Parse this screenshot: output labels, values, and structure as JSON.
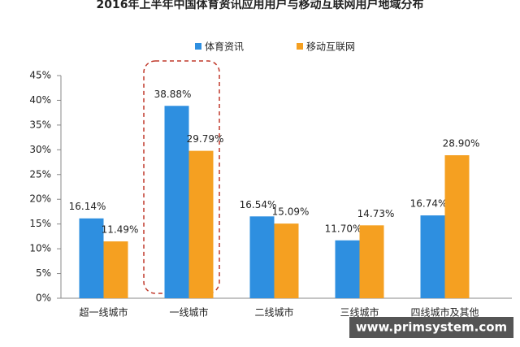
{
  "chart_data": {
    "type": "bar",
    "title": "2016年上半年中国体育资讯应用用户与移动互联网用户地域分布",
    "categories": [
      "超一线城市",
      "一线城市",
      "二线城市",
      "三线城市",
      "四线城市及其他"
    ],
    "series": [
      {
        "name": "体育资讯",
        "color": "#2e8fe0",
        "values": [
          16.14,
          38.88,
          16.54,
          11.7,
          16.74
        ],
        "value_labels": [
          "16.14%",
          "38.88%",
          "16.54%",
          "11.70%",
          "16.74%"
        ]
      },
      {
        "name": "移动互联网",
        "color": "#f5a021",
        "values": [
          11.49,
          29.79,
          15.09,
          14.73,
          28.9
        ],
        "value_labels": [
          "11.49%",
          "29.79%",
          "15.09%",
          "14.73%",
          "28.90%"
        ]
      }
    ],
    "ylim": [
      0,
      45
    ],
    "yticks": [
      {
        "value": 0,
        "label": "0%"
      },
      {
        "value": 5,
        "label": "5%"
      },
      {
        "value": 10,
        "label": "10%"
      },
      {
        "value": 15,
        "label": "15%"
      },
      {
        "value": 20,
        "label": "20%"
      },
      {
        "value": 25,
        "label": "25%"
      },
      {
        "value": 30,
        "label": "30%"
      },
      {
        "value": 35,
        "label": "35%"
      },
      {
        "value": 40,
        "label": "40%"
      },
      {
        "value": 45,
        "label": "45%"
      }
    ],
    "watermark": "www.primsystem.com"
  }
}
